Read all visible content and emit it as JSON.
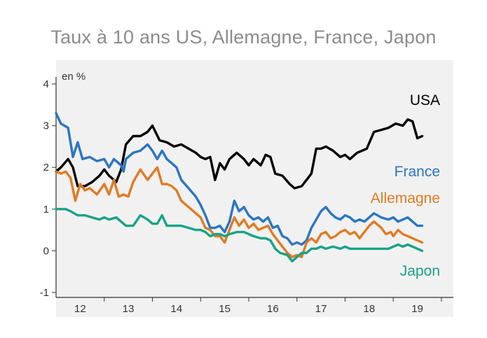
{
  "title": "Taux à 10 ans US, Allemagne, France, Japon",
  "chart_data": {
    "type": "line",
    "title": "Taux à 10 ans US, Allemagne, France, Japon",
    "ylabel": "en %",
    "ylim": [
      -1,
      4
    ],
    "yticks": [
      -1,
      0,
      1,
      2,
      3,
      4
    ],
    "xlim": [
      2011.5,
      2019.5
    ],
    "xticks": [
      {
        "label": "12",
        "pos": 2012.0
      },
      {
        "label": "13",
        "pos": 2013.0
      },
      {
        "label": "14",
        "pos": 2014.0
      },
      {
        "label": "15",
        "pos": 2015.0
      },
      {
        "label": "16",
        "pos": 2016.0
      },
      {
        "label": "17",
        "pos": 2017.0
      },
      {
        "label": "18",
        "pos": 2018.0
      },
      {
        "label": "19",
        "pos": 2019.0
      }
    ],
    "grid": false,
    "series": [
      {
        "name": "USA",
        "color": "#000000",
        "points": [
          [
            2011.5,
            1.9
          ],
          [
            2011.6,
            2.0
          ],
          [
            2011.75,
            2.2
          ],
          [
            2011.85,
            2.0
          ],
          [
            2011.95,
            1.55
          ],
          [
            2012.1,
            1.55
          ],
          [
            2012.25,
            1.65
          ],
          [
            2012.4,
            1.8
          ],
          [
            2012.5,
            1.95
          ],
          [
            2012.6,
            1.8
          ],
          [
            2012.75,
            1.65
          ],
          [
            2012.85,
            1.95
          ],
          [
            2012.95,
            2.55
          ],
          [
            2013.1,
            2.75
          ],
          [
            2013.25,
            2.75
          ],
          [
            2013.4,
            2.85
          ],
          [
            2013.5,
            3.0
          ],
          [
            2013.65,
            2.65
          ],
          [
            2013.8,
            2.6
          ],
          [
            2013.95,
            2.5
          ],
          [
            2014.1,
            2.55
          ],
          [
            2014.25,
            2.45
          ],
          [
            2014.4,
            2.35
          ],
          [
            2014.5,
            2.25
          ],
          [
            2014.6,
            2.2
          ],
          [
            2014.7,
            2.25
          ],
          [
            2014.8,
            1.7
          ],
          [
            2014.9,
            2.1
          ],
          [
            2015.0,
            1.95
          ],
          [
            2015.1,
            2.2
          ],
          [
            2015.25,
            2.35
          ],
          [
            2015.4,
            2.2
          ],
          [
            2015.5,
            2.05
          ],
          [
            2015.6,
            2.2
          ],
          [
            2015.75,
            2.05
          ],
          [
            2015.85,
            2.3
          ],
          [
            2015.95,
            2.25
          ],
          [
            2016.05,
            1.85
          ],
          [
            2016.2,
            1.8
          ],
          [
            2016.35,
            1.6
          ],
          [
            2016.45,
            1.5
          ],
          [
            2016.6,
            1.55
          ],
          [
            2016.8,
            1.85
          ],
          [
            2016.9,
            2.45
          ],
          [
            2017.0,
            2.45
          ],
          [
            2017.1,
            2.5
          ],
          [
            2017.25,
            2.4
          ],
          [
            2017.4,
            2.25
          ],
          [
            2017.5,
            2.3
          ],
          [
            2017.6,
            2.2
          ],
          [
            2017.75,
            2.35
          ],
          [
            2017.85,
            2.4
          ],
          [
            2017.95,
            2.45
          ],
          [
            2018.1,
            2.85
          ],
          [
            2018.25,
            2.9
          ],
          [
            2018.4,
            2.95
          ],
          [
            2018.55,
            3.05
          ],
          [
            2018.7,
            3.0
          ],
          [
            2018.8,
            3.15
          ],
          [
            2018.9,
            3.1
          ],
          [
            2019.0,
            2.7
          ],
          [
            2019.1,
            2.75
          ]
        ]
      },
      {
        "name": "France",
        "color": "#2a75c5",
        "points": [
          [
            2011.5,
            3.3
          ],
          [
            2011.6,
            3.05
          ],
          [
            2011.75,
            2.95
          ],
          [
            2011.85,
            2.25
          ],
          [
            2011.95,
            2.6
          ],
          [
            2012.05,
            2.2
          ],
          [
            2012.2,
            2.25
          ],
          [
            2012.35,
            2.15
          ],
          [
            2012.5,
            2.2
          ],
          [
            2012.6,
            2.0
          ],
          [
            2012.7,
            2.2
          ],
          [
            2012.85,
            2.05
          ],
          [
            2012.9,
            1.9
          ],
          [
            2012.95,
            2.2
          ],
          [
            2013.1,
            2.35
          ],
          [
            2013.25,
            2.4
          ],
          [
            2013.4,
            2.55
          ],
          [
            2013.5,
            2.4
          ],
          [
            2013.6,
            2.2
          ],
          [
            2013.7,
            2.4
          ],
          [
            2013.8,
            2.2
          ],
          [
            2013.9,
            2.1
          ],
          [
            2014.0,
            2.0
          ],
          [
            2014.1,
            1.7
          ],
          [
            2014.25,
            1.5
          ],
          [
            2014.4,
            1.3
          ],
          [
            2014.5,
            1.1
          ],
          [
            2014.6,
            0.85
          ],
          [
            2014.7,
            0.55
          ],
          [
            2014.8,
            0.55
          ],
          [
            2014.9,
            0.6
          ],
          [
            2015.0,
            0.45
          ],
          [
            2015.1,
            0.7
          ],
          [
            2015.2,
            1.2
          ],
          [
            2015.3,
            0.95
          ],
          [
            2015.4,
            1.05
          ],
          [
            2015.5,
            0.85
          ],
          [
            2015.6,
            0.75
          ],
          [
            2015.7,
            0.8
          ],
          [
            2015.8,
            0.7
          ],
          [
            2015.9,
            0.8
          ],
          [
            2016.0,
            0.55
          ],
          [
            2016.1,
            0.6
          ],
          [
            2016.2,
            0.35
          ],
          [
            2016.3,
            0.3
          ],
          [
            2016.4,
            0.15
          ],
          [
            2016.5,
            0.2
          ],
          [
            2016.6,
            0.15
          ],
          [
            2016.7,
            0.25
          ],
          [
            2016.8,
            0.55
          ],
          [
            2016.9,
            0.75
          ],
          [
            2017.0,
            0.95
          ],
          [
            2017.1,
            1.05
          ],
          [
            2017.2,
            0.9
          ],
          [
            2017.3,
            0.8
          ],
          [
            2017.4,
            0.75
          ],
          [
            2017.5,
            0.85
          ],
          [
            2017.6,
            0.8
          ],
          [
            2017.7,
            0.7
          ],
          [
            2017.8,
            0.75
          ],
          [
            2017.9,
            0.7
          ],
          [
            2018.0,
            0.8
          ],
          [
            2018.1,
            0.9
          ],
          [
            2018.25,
            0.8
          ],
          [
            2018.4,
            0.75
          ],
          [
            2018.5,
            0.8
          ],
          [
            2018.6,
            0.7
          ],
          [
            2018.7,
            0.75
          ],
          [
            2018.8,
            0.8
          ],
          [
            2018.9,
            0.7
          ],
          [
            2019.0,
            0.6
          ],
          [
            2019.1,
            0.6
          ]
        ]
      },
      {
        "name": "Allemagne",
        "color": "#e07b22",
        "points": [
          [
            2011.5,
            1.9
          ],
          [
            2011.6,
            1.85
          ],
          [
            2011.7,
            1.9
          ],
          [
            2011.8,
            1.75
          ],
          [
            2011.9,
            1.2
          ],
          [
            2012.0,
            1.6
          ],
          [
            2012.1,
            1.45
          ],
          [
            2012.2,
            1.5
          ],
          [
            2012.35,
            1.35
          ],
          [
            2012.5,
            1.6
          ],
          [
            2012.6,
            1.35
          ],
          [
            2012.7,
            1.7
          ],
          [
            2012.8,
            1.3
          ],
          [
            2012.9,
            1.35
          ],
          [
            2013.0,
            1.3
          ],
          [
            2013.1,
            1.65
          ],
          [
            2013.25,
            1.95
          ],
          [
            2013.4,
            1.7
          ],
          [
            2013.5,
            1.85
          ],
          [
            2013.6,
            2.0
          ],
          [
            2013.7,
            1.6
          ],
          [
            2013.8,
            1.6
          ],
          [
            2013.9,
            1.55
          ],
          [
            2014.0,
            1.45
          ],
          [
            2014.1,
            1.2
          ],
          [
            2014.25,
            1.05
          ],
          [
            2014.4,
            0.9
          ],
          [
            2014.5,
            0.8
          ],
          [
            2014.6,
            0.55
          ],
          [
            2014.7,
            0.5
          ],
          [
            2014.8,
            0.35
          ],
          [
            2014.9,
            0.35
          ],
          [
            2015.0,
            0.2
          ],
          [
            2015.1,
            0.5
          ],
          [
            2015.2,
            0.8
          ],
          [
            2015.3,
            0.6
          ],
          [
            2015.4,
            0.75
          ],
          [
            2015.5,
            0.55
          ],
          [
            2015.6,
            0.65
          ],
          [
            2015.7,
            0.5
          ],
          [
            2015.8,
            0.55
          ],
          [
            2015.9,
            0.6
          ],
          [
            2016.0,
            0.4
          ],
          [
            2016.1,
            0.25
          ],
          [
            2016.2,
            0.1
          ],
          [
            2016.3,
            -0.05
          ],
          [
            2016.4,
            -0.15
          ],
          [
            2016.5,
            -0.1
          ],
          [
            2016.6,
            -0.15
          ],
          [
            2016.7,
            0.2
          ],
          [
            2016.8,
            0.3
          ],
          [
            2016.9,
            0.2
          ],
          [
            2017.0,
            0.4
          ],
          [
            2017.1,
            0.45
          ],
          [
            2017.2,
            0.3
          ],
          [
            2017.3,
            0.35
          ],
          [
            2017.4,
            0.45
          ],
          [
            2017.5,
            0.5
          ],
          [
            2017.6,
            0.4
          ],
          [
            2017.7,
            0.45
          ],
          [
            2017.8,
            0.3
          ],
          [
            2017.9,
            0.45
          ],
          [
            2018.0,
            0.6
          ],
          [
            2018.1,
            0.7
          ],
          [
            2018.25,
            0.55
          ],
          [
            2018.35,
            0.4
          ],
          [
            2018.45,
            0.45
          ],
          [
            2018.5,
            0.35
          ],
          [
            2018.6,
            0.5
          ],
          [
            2018.7,
            0.4
          ],
          [
            2018.8,
            0.35
          ],
          [
            2018.9,
            0.3
          ],
          [
            2019.0,
            0.25
          ],
          [
            2019.1,
            0.2
          ]
        ]
      },
      {
        "name": "Japon",
        "color": "#17a386",
        "points": [
          [
            2011.5,
            1.0
          ],
          [
            2011.6,
            1.0
          ],
          [
            2011.7,
            1.0
          ],
          [
            2011.8,
            0.95
          ],
          [
            2011.95,
            0.85
          ],
          [
            2012.1,
            0.85
          ],
          [
            2012.25,
            0.8
          ],
          [
            2012.4,
            0.75
          ],
          [
            2012.5,
            0.8
          ],
          [
            2012.6,
            0.75
          ],
          [
            2012.75,
            0.8
          ],
          [
            2012.85,
            0.7
          ],
          [
            2012.95,
            0.6
          ],
          [
            2013.1,
            0.6
          ],
          [
            2013.25,
            0.85
          ],
          [
            2013.4,
            0.75
          ],
          [
            2013.5,
            0.65
          ],
          [
            2013.6,
            0.65
          ],
          [
            2013.7,
            0.85
          ],
          [
            2013.8,
            0.6
          ],
          [
            2013.95,
            0.6
          ],
          [
            2014.1,
            0.6
          ],
          [
            2014.25,
            0.55
          ],
          [
            2014.4,
            0.5
          ],
          [
            2014.5,
            0.5
          ],
          [
            2014.6,
            0.45
          ],
          [
            2014.7,
            0.35
          ],
          [
            2014.8,
            0.4
          ],
          [
            2014.9,
            0.4
          ],
          [
            2015.0,
            0.35
          ],
          [
            2015.1,
            0.4
          ],
          [
            2015.25,
            0.45
          ],
          [
            2015.4,
            0.45
          ],
          [
            2015.5,
            0.4
          ],
          [
            2015.6,
            0.35
          ],
          [
            2015.75,
            0.3
          ],
          [
            2015.85,
            0.3
          ],
          [
            2015.95,
            0.25
          ],
          [
            2016.05,
            0.05
          ],
          [
            2016.15,
            -0.05
          ],
          [
            2016.3,
            -0.1
          ],
          [
            2016.4,
            -0.25
          ],
          [
            2016.5,
            -0.15
          ],
          [
            2016.6,
            -0.05
          ],
          [
            2016.7,
            -0.05
          ],
          [
            2016.8,
            0.05
          ],
          [
            2016.9,
            0.05
          ],
          [
            2017.0,
            0.1
          ],
          [
            2017.1,
            0.05
          ],
          [
            2017.25,
            0.1
          ],
          [
            2017.4,
            0.05
          ],
          [
            2017.5,
            0.1
          ],
          [
            2017.6,
            0.05
          ],
          [
            2017.75,
            0.05
          ],
          [
            2017.85,
            0.05
          ],
          [
            2018.0,
            0.05
          ],
          [
            2018.1,
            0.05
          ],
          [
            2018.25,
            0.05
          ],
          [
            2018.4,
            0.05
          ],
          [
            2018.5,
            0.1
          ],
          [
            2018.6,
            0.15
          ],
          [
            2018.7,
            0.1
          ],
          [
            2018.8,
            0.15
          ],
          [
            2018.9,
            0.1
          ],
          [
            2019.0,
            0.05
          ],
          [
            2019.1,
            0.0
          ]
        ]
      }
    ],
    "series_labels": [
      {
        "name": "USA",
        "color": "#000000"
      },
      {
        "name": "France",
        "color": "#2a75c5"
      },
      {
        "name": "Allemagne",
        "color": "#e07b22"
      },
      {
        "name": "Japon",
        "color": "#17a386"
      }
    ]
  }
}
